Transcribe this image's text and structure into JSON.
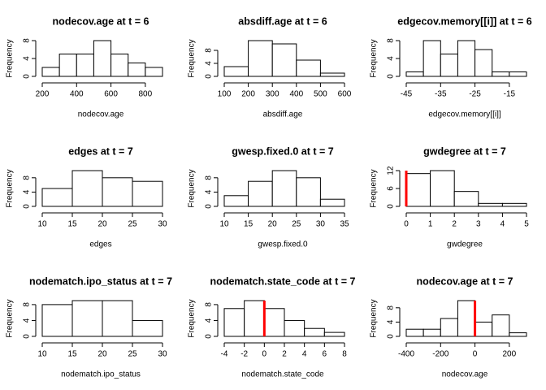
{
  "chart_data": [
    {
      "type": "histogram",
      "title": "nodecov.age at t = 6",
      "xlabel": "nodecov.age",
      "ylabel": "Frequency",
      "bins": [
        200,
        300,
        400,
        500,
        600,
        700,
        800,
        900
      ],
      "counts": [
        2,
        5,
        5,
        8,
        5,
        3,
        2
      ],
      "color": "#ffffff",
      "xlim": [
        200,
        900
      ],
      "xticks": [
        200,
        400,
        600,
        800
      ],
      "ylim": [
        0,
        8
      ],
      "yticks": [
        0,
        4,
        8
      ]
    },
    {
      "type": "histogram",
      "title": "absdiff.age at t = 6",
      "xlabel": "absdiff.age",
      "ylabel": "Frequency",
      "bins": [
        100,
        200,
        300,
        400,
        500,
        600
      ],
      "counts": [
        3,
        11,
        10,
        5,
        1
      ],
      "color": "#ffffff",
      "xlim": [
        100,
        600
      ],
      "xticks": [
        100,
        200,
        300,
        400,
        500,
        600
      ],
      "ylim": [
        0,
        11
      ],
      "yticks": [
        0,
        4,
        8
      ]
    },
    {
      "type": "histogram",
      "title": "edgecov.memory[[i]] at t = 6",
      "xlabel": "edgecov.memory[[i]]",
      "ylabel": "Frequency",
      "bins": [
        -45,
        -40,
        -35,
        -30,
        -25,
        -20,
        -15,
        -10
      ],
      "counts": [
        1,
        8,
        5,
        8,
        6,
        1,
        1
      ],
      "color": "#ffffff",
      "xlim": [
        -45,
        -10
      ],
      "xticks": [
        -45,
        -35,
        -25,
        -15
      ],
      "ylim": [
        0,
        8
      ],
      "yticks": [
        0,
        4,
        8
      ]
    },
    {
      "type": "histogram",
      "title": "edges at t = 7",
      "xlabel": "edges",
      "ylabel": "Frequency",
      "bins": [
        10,
        15,
        20,
        25,
        30
      ],
      "counts": [
        5,
        10,
        8,
        7
      ],
      "color": "#ffffff",
      "xlim": [
        10,
        30
      ],
      "xticks": [
        10,
        15,
        20,
        25,
        30
      ],
      "ylim": [
        0,
        10
      ],
      "yticks": [
        0,
        4,
        8
      ]
    },
    {
      "type": "histogram",
      "title": "gwesp.fixed.0 at t = 7",
      "xlabel": "gwesp.fixed.0",
      "ylabel": "Frequency",
      "bins": [
        10,
        15,
        20,
        25,
        30,
        35
      ],
      "counts": [
        3,
        7,
        10,
        8,
        2
      ],
      "color": "#ffffff",
      "xlim": [
        10,
        35
      ],
      "xticks": [
        10,
        15,
        20,
        25,
        30,
        35
      ],
      "ylim": [
        0,
        10
      ],
      "yticks": [
        0,
        4,
        8
      ]
    },
    {
      "type": "histogram",
      "title": "gwdegree at t = 7",
      "xlabel": "gwdegree",
      "ylabel": "Frequency",
      "bins": [
        0,
        1,
        2,
        3,
        4,
        5
      ],
      "counts": [
        11,
        12,
        5,
        1,
        1
      ],
      "color": "#ffffff",
      "xlim": [
        0,
        5
      ],
      "xticks": [
        0,
        1,
        2,
        3,
        4,
        5
      ],
      "ylim": [
        0,
        12
      ],
      "yticks": [
        0,
        6,
        12
      ],
      "ref_line": 0,
      "ref_color": "#ff0000"
    },
    {
      "type": "histogram",
      "title": "nodematch.ipo_status at t = 7",
      "xlabel": "nodematch.ipo_status",
      "ylabel": "Frequency",
      "bins": [
        10,
        15,
        20,
        25,
        30
      ],
      "counts": [
        8,
        9,
        9,
        4
      ],
      "color": "#ffffff",
      "xlim": [
        10,
        30
      ],
      "xticks": [
        10,
        15,
        20,
        25,
        30
      ],
      "ylim": [
        0,
        9
      ],
      "yticks": [
        0,
        4,
        8
      ]
    },
    {
      "type": "histogram",
      "title": "nodematch.state_code at t = 7",
      "xlabel": "nodematch.state_code",
      "ylabel": "Frequency",
      "bins": [
        -4,
        -2,
        0,
        2,
        4,
        6,
        8
      ],
      "counts": [
        7,
        9,
        7,
        4,
        2,
        1
      ],
      "color": "#ffffff",
      "xlim": [
        -4,
        8
      ],
      "xticks": [
        -4,
        -2,
        0,
        2,
        4,
        6,
        8
      ],
      "ylim": [
        0,
        9
      ],
      "yticks": [
        0,
        4,
        8
      ],
      "ref_line": 0,
      "ref_color": "#ff0000"
    },
    {
      "type": "histogram",
      "title": "nodecov.age at t = 7",
      "xlabel": "nodecov.age",
      "ylabel": "Frequency",
      "bins": [
        -400,
        -300,
        -200,
        -100,
        0,
        100,
        200,
        300
      ],
      "counts": [
        2,
        2,
        5,
        10,
        4,
        6,
        1
      ],
      "color": "#ffffff",
      "xlim": [
        -400,
        300
      ],
      "xticks": [
        -400,
        -200,
        0,
        200
      ],
      "ylim": [
        0,
        10
      ],
      "yticks": [
        0,
        4,
        8
      ],
      "ref_line": 0,
      "ref_color": "#ff0000"
    }
  ]
}
